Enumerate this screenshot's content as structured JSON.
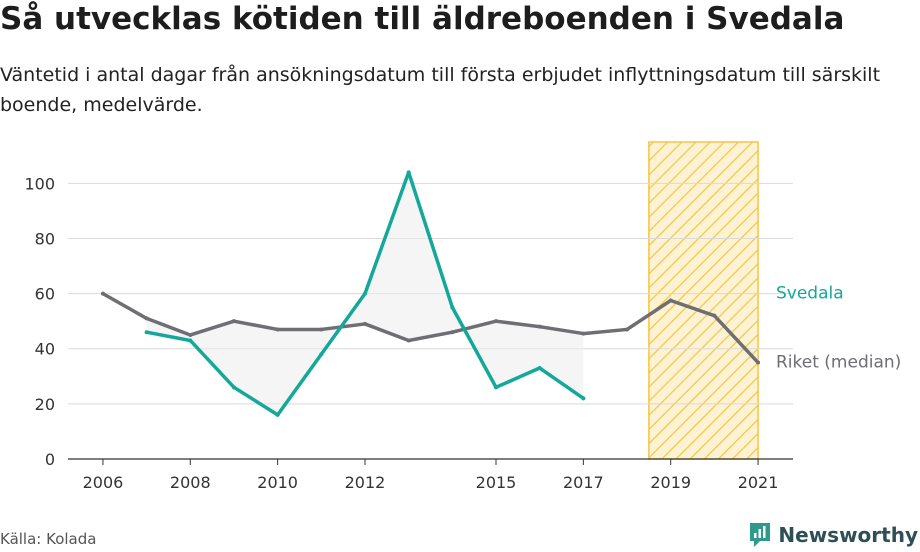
{
  "header": {
    "title": "Så utvecklas kötiden till äldreboenden i Svedala",
    "subtitle": "Väntetid i antal dagar från ansökningsdatum till första erbjudet inflyttningsdatum till särskilt boende, medelvärde."
  },
  "footer": {
    "source": "Källa: Kolada",
    "brand": "Newsworthy",
    "brand_icon": "newsworthy-logo-icon"
  },
  "colors": {
    "svedala": "#14a89a",
    "riket": "#6e6e73",
    "highlight_fill": "#fdf3d2",
    "highlight_stroke": "#f5c54a",
    "grid": "#d9d9d9",
    "area": "#ececec"
  },
  "chart_data": {
    "type": "line",
    "title": "Så utvecklas kötiden till äldreboenden i Svedala",
    "ylim": [
      0,
      115
    ],
    "yticks": [
      0,
      20,
      40,
      60,
      80,
      100
    ],
    "xlim": [
      2005.2,
      2021.8
    ],
    "xtick_labels": [
      "2006",
      "2008",
      "2010",
      "2012",
      "2015",
      "2017",
      "2019",
      "2021"
    ],
    "grid": "horizontal",
    "legend": "direct labels right",
    "highlight_range": [
      2018.5,
      2021
    ],
    "x": [
      2006,
      2007,
      2008,
      2009,
      2010,
      2011,
      2012,
      2013,
      2014,
      2015,
      2016,
      2017,
      2018,
      2019,
      2020,
      2021
    ],
    "series": [
      {
        "name": "Svedala",
        "color": "#14a89a",
        "values": [
          null,
          46,
          43,
          26,
          16,
          38,
          60,
          104,
          55,
          26,
          33,
          22,
          null,
          null,
          null,
          null
        ]
      },
      {
        "name": "Riket (median)",
        "color": "#6e6e73",
        "values": [
          60,
          51,
          45,
          50,
          47,
          47,
          49,
          43,
          46,
          50,
          48,
          45.5,
          47,
          57.5,
          52,
          35
        ]
      }
    ]
  }
}
